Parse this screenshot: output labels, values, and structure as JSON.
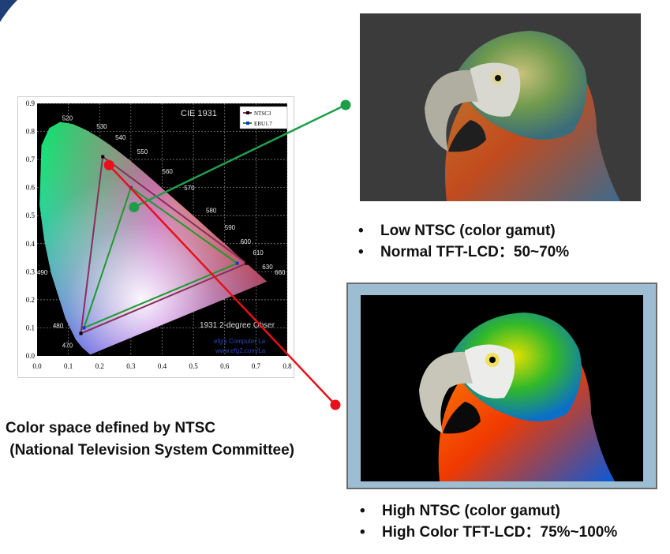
{
  "chart_data": {
    "type": "diagram",
    "title": "CIE 1931",
    "footer": "1931 2-degree Obser",
    "watermark": [
      "efg's Computer La",
      "www.efg2.com/La"
    ],
    "x_ticks": [
      "0.0",
      "0.1",
      "0.2",
      "0.3",
      "0.4",
      "0.5",
      "0.6",
      "0.7",
      "0.8"
    ],
    "y_ticks": [
      "0.0",
      "0.1",
      "0.2",
      "0.3",
      "0.4",
      "0.5",
      "0.6",
      "0.7",
      "0.8",
      "0.9"
    ],
    "xlim": [
      0,
      0.8
    ],
    "ylim": [
      0,
      0.9
    ],
    "wavelength_labels": [
      {
        "label": "520",
        "x": 0.08,
        "y": 0.84
      },
      {
        "label": "530",
        "x": 0.19,
        "y": 0.81
      },
      {
        "label": "540",
        "x": 0.25,
        "y": 0.77
      },
      {
        "label": "550",
        "x": 0.32,
        "y": 0.72
      },
      {
        "label": "560",
        "x": 0.4,
        "y": 0.65
      },
      {
        "label": "570",
        "x": 0.47,
        "y": 0.59
      },
      {
        "label": "580",
        "x": 0.54,
        "y": 0.51
      },
      {
        "label": "590",
        "x": 0.6,
        "y": 0.45
      },
      {
        "label": "600",
        "x": 0.65,
        "y": 0.4
      },
      {
        "label": "610",
        "x": 0.69,
        "y": 0.36
      },
      {
        "label": "630",
        "x": 0.72,
        "y": 0.31
      },
      {
        "label": "660",
        "x": 0.76,
        "y": 0.29
      },
      {
        "label": "490",
        "x": 0.0,
        "y": 0.29
      },
      {
        "label": "480",
        "x": 0.05,
        "y": 0.1
      },
      {
        "label": "470",
        "x": 0.08,
        "y": 0.03
      }
    ],
    "legend": [
      {
        "name": "NTSC3",
        "color": "#8b2e5a"
      },
      {
        "name": "EBU1.7",
        "color": "#1c9b2a"
      }
    ],
    "series": [
      {
        "name": "NTSC3",
        "color": "#8b2e5a",
        "points": [
          [
            0.21,
            0.71
          ],
          [
            0.67,
            0.33
          ],
          [
            0.14,
            0.08
          ]
        ]
      },
      {
        "name": "EBU1.7",
        "color": "#1c9b2a",
        "points": [
          [
            0.3,
            0.6
          ],
          [
            0.64,
            0.33
          ],
          [
            0.15,
            0.1
          ]
        ]
      }
    ],
    "markers": [
      {
        "name": "low-ntsc-point",
        "color": "#1f9e4a",
        "x": 0.31,
        "y": 0.53
      },
      {
        "name": "high-ntsc-point",
        "color": "#e8101a",
        "x": 0.23,
        "y": 0.68
      }
    ]
  },
  "low": {
    "bullets": [
      "Low NTSC (color gamut)",
      "Normal TFT-LCD：50~70%"
    ]
  },
  "high": {
    "bullets": [
      "High NTSC (color gamut)",
      "High Color TFT-LCD：75%~100%"
    ]
  },
  "caption": {
    "line1": "Color space defined by NTSC",
    "line2": " (National Television System Committee)"
  },
  "bullet_symbol": "•",
  "colors": {
    "green_connector": "#1f9e4a",
    "red_connector": "#e8101a",
    "high_frame": "#9dbdd3",
    "low_photo_bg": "#3b3b3b"
  }
}
